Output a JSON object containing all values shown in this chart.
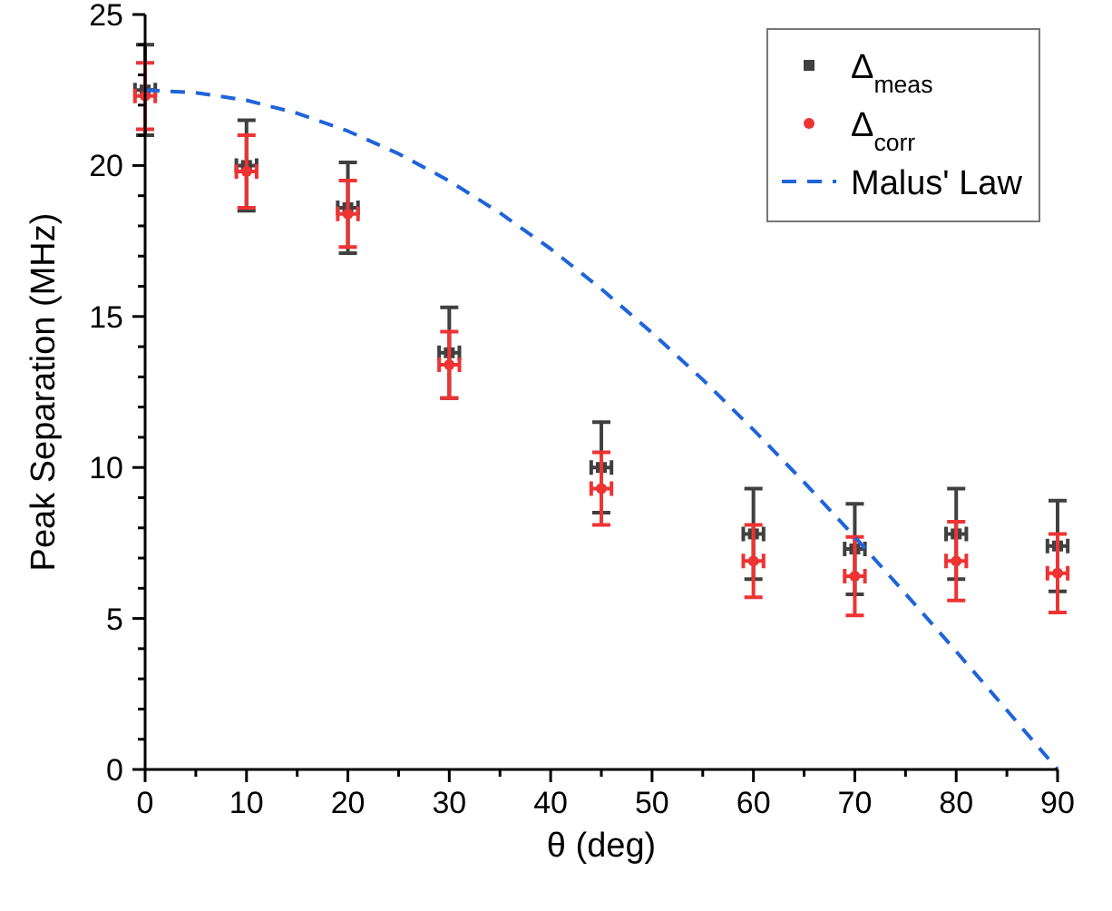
{
  "chart_data": {
    "type": "scatter",
    "xlabel": "θ (deg)",
    "ylabel": "Peak Separation (MHz)",
    "xlim": [
      0,
      90
    ],
    "ylim": [
      0,
      25
    ],
    "xticks": [
      0,
      {
        "value": 5,
        "label": null
      },
      10,
      {
        "value": 15,
        "label": null
      },
      20,
      {
        "value": 25,
        "label": null
      },
      30,
      {
        "value": 35,
        "label": null
      },
      40,
      {
        "value": 45,
        "label": null
      },
      50,
      {
        "value": 55,
        "label": null
      },
      60,
      {
        "value": 65,
        "label": null
      },
      70,
      {
        "value": 75,
        "label": null
      },
      80,
      {
        "value": 85,
        "label": null
      },
      90
    ],
    "yticks": [
      0,
      {
        "value": 1,
        "label": null
      },
      {
        "value": 2,
        "label": null
      },
      {
        "value": 3,
        "label": null
      },
      {
        "value": 4,
        "label": null
      },
      5,
      {
        "value": 6,
        "label": null
      },
      {
        "value": 7,
        "label": null
      },
      {
        "value": 8,
        "label": null
      },
      {
        "value": 9,
        "label": null
      },
      10,
      {
        "value": 11,
        "label": null
      },
      {
        "value": 12,
        "label": null
      },
      {
        "value": 13,
        "label": null
      },
      {
        "value": 14,
        "label": null
      },
      15,
      {
        "value": 16,
        "label": null
      },
      {
        "value": 17,
        "label": null
      },
      {
        "value": 18,
        "label": null
      },
      {
        "value": 19,
        "label": null
      },
      20,
      {
        "value": 21,
        "label": null
      },
      {
        "value": 22,
        "label": null
      },
      {
        "value": 23,
        "label": null
      },
      {
        "value": 24,
        "label": null
      },
      25
    ],
    "grid": false,
    "legend": "top right",
    "series": [
      {
        "name": "Δ$_{meas}$",
        "marker": "square",
        "color": "#404040",
        "x": [
          0,
          10,
          20,
          30,
          45,
          60,
          70,
          80,
          90
        ],
        "values": [
          22.5,
          20.0,
          18.6,
          13.8,
          10.0,
          7.8,
          7.3,
          7.8,
          7.4
        ],
        "errors": [
          1.5,
          1.5,
          1.5,
          1.5,
          1.5,
          1.5,
          1.5,
          1.5,
          1.5
        ],
        "xerrors": [
          1,
          1,
          1,
          1,
          1,
          1,
          1,
          1,
          1
        ]
      },
      {
        "name": "Δ$_{corr}$",
        "marker": "circle",
        "color": "#ee3333",
        "x": [
          0,
          10,
          20,
          30,
          45,
          60,
          70,
          80,
          90
        ],
        "values": [
          22.3,
          19.8,
          18.4,
          13.4,
          9.3,
          6.9,
          6.4,
          6.9,
          6.5
        ],
        "errors": [
          1.1,
          1.2,
          1.1,
          1.1,
          1.2,
          1.2,
          1.3,
          1.3,
          1.3
        ],
        "xerrors": [
          1,
          1,
          1,
          1,
          1,
          1,
          1,
          1,
          1
        ]
      },
      {
        "name": "Malus' Law",
        "type": "line",
        "line_style": "dashed",
        "color": "#1f64d9",
        "x": [
          0,
          5,
          10,
          15,
          20,
          25,
          30,
          35,
          40,
          45,
          50,
          55,
          60,
          65,
          70,
          75,
          80,
          85,
          90
        ],
        "values": [
          22.5,
          22.41,
          22.16,
          21.73,
          21.14,
          20.39,
          19.49,
          18.43,
          17.24,
          15.91,
          14.46,
          12.91,
          11.25,
          9.51,
          7.7,
          5.82,
          3.91,
          1.96,
          0
        ]
      }
    ]
  }
}
